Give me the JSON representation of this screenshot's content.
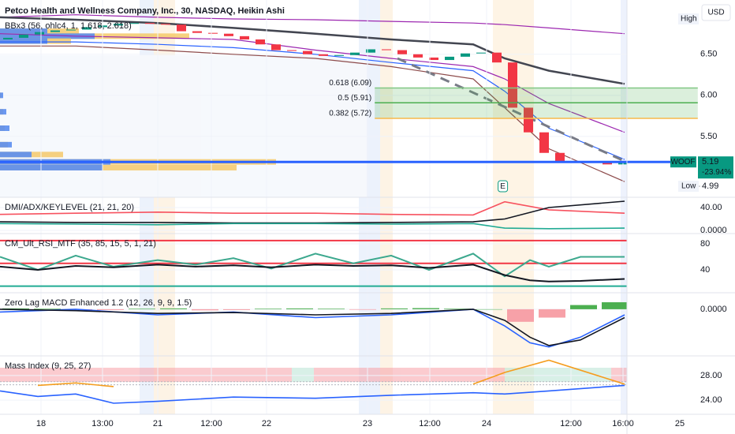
{
  "header": {
    "title": "Petco Health and Wellness Company, Inc., 30, NASDAQ, Heikin Ashi",
    "currency": "USD"
  },
  "chart_data": [
    {
      "type": "candlestick",
      "title": "BBx3 (56, ohlc4, 1, 1.618, 2.618)",
      "grid": true,
      "xlim": [
        0,
        116.5
      ],
      "xticks": [
        {
          "value": 6.5,
          "label": "18"
        },
        {
          "value": 16.25,
          "label": "13:00"
        },
        {
          "value": 25,
          "label": "21"
        },
        {
          "value": 33.5,
          "label": "12:00"
        },
        {
          "value": 42.25,
          "label": "22"
        },
        {
          "value": 58.25,
          "label": "23"
        },
        {
          "value": 68.125,
          "label": "12:00"
        },
        {
          "value": 77.125,
          "label": "24"
        },
        {
          "value": 90.5,
          "label": "12:00"
        },
        {
          "value": 98.75,
          "label": "16:00"
        },
        {
          "value": 107.75,
          "label": "25"
        }
      ],
      "ylim": [
        4.76,
        7.16
      ],
      "yticks": [
        {
          "value": 5.5,
          "label": "5.50"
        },
        {
          "value": 6,
          "label": "6.00"
        },
        {
          "value": 6.5,
          "label": "6.50"
        }
      ],
      "x": [
        1.25,
        3.75,
        6.25,
        8.75,
        11.25,
        13.75,
        16.25,
        18.75,
        21.25,
        23.75,
        26.25,
        28.75,
        31.25,
        33.75,
        36.25,
        38.75,
        41.25,
        43.75,
        46.25,
        48.75,
        51.25,
        53.75,
        56.25,
        58.75,
        61.25,
        63.75,
        66.25,
        68.75,
        71.25,
        73.75,
        76.25,
        78.75,
        81.25,
        83.75,
        86.25,
        88.75,
        91.25,
        93.75,
        96.25,
        98.75
      ],
      "open": [
        6.68,
        6.7,
        6.74,
        6.77,
        6.79,
        6.8,
        6.83,
        6.85,
        6.87,
        6.88,
        6.87,
        6.86,
        6.78,
        6.76,
        6.75,
        6.72,
        6.68,
        6.62,
        6.55,
        6.54,
        6.5,
        6.48,
        6.49,
        6.52,
        6.56,
        6.55,
        6.5,
        6.46,
        6.43,
        6.47,
        6.51,
        6.52,
        6.4,
        5.85,
        5.55,
        5.3,
        5.2,
        5.18,
        5.2,
        5.16
      ],
      "high": {
        "label": "High"
      },
      "low": {
        "label": "Low",
        "value": 4.99
      },
      "close": [
        6.7,
        6.74,
        6.77,
        6.79,
        6.8,
        6.83,
        6.85,
        6.87,
        6.88,
        6.87,
        6.86,
        6.78,
        6.76,
        6.75,
        6.72,
        6.68,
        6.62,
        6.55,
        6.54,
        6.5,
        6.48,
        6.49,
        6.52,
        6.56,
        6.55,
        6.5,
        6.46,
        6.43,
        6.47,
        6.51,
        6.52,
        6.4,
        5.85,
        5.55,
        5.3,
        5.2,
        5.18,
        5.2,
        5.16,
        5.19
      ],
      "up_color": "#089981",
      "down_color": "#f23645",
      "bands": {
        "x": [
          0,
          12,
          25,
          37,
          50,
          62,
          75,
          80,
          87,
          99
        ],
        "series": [
          {
            "color": "#9c27b0",
            "values": [
              6.95,
              6.98,
              6.95,
              6.93,
              6.92,
              6.9,
              6.88,
              6.86,
              6.82,
              6.75
            ]
          },
          {
            "color": "#434651",
            "values": [
              6.95,
              6.92,
              6.88,
              6.82,
              6.75,
              6.68,
              6.62,
              6.45,
              6.3,
              6.14
            ]
          },
          {
            "color": "#9c27b0",
            "values": [
              6.75,
              6.72,
              6.7,
              6.68,
              6.55,
              6.45,
              6.35,
              6.2,
              5.9,
              5.55
            ]
          },
          {
            "color": "#2962ff",
            "values": [
              6.65,
              6.65,
              6.62,
              6.58,
              6.5,
              6.4,
              6.3,
              6.05,
              5.6,
              5.22
            ]
          },
          {
            "color": "#8d4b4b",
            "values": [
              6.6,
              6.6,
              6.55,
              6.5,
              6.45,
              6.35,
              6.2,
              5.85,
              5.35,
              4.95
            ]
          }
        ]
      },
      "trendline": {
        "x": [
          63,
          99
        ],
        "values": [
          6.45,
          5.2
        ],
        "color": "#787b86"
      },
      "fib": {
        "x": [
          59.4,
          110.6
        ],
        "levels": [
          {
            "value": 6.09,
            "label": "0.618 (6.09)",
            "color": "#81c784"
          },
          {
            "value": 5.91,
            "label": "0.5 (5.91)",
            "color": "#4caf50"
          },
          {
            "value": 5.72,
            "label": "0.382 (5.72)",
            "color": "#f7b84b"
          }
        ]
      },
      "volume_profile": {
        "levels": [
          6.78,
          6.72,
          6.66,
          6.0,
          5.8,
          5.6,
          5.4,
          5.28,
          5.19,
          5.12
        ],
        "blue": [
          60,
          120,
          60,
          4,
          8,
          12,
          15,
          40,
          140,
          130
        ],
        "yellow": [
          100,
          240,
          90,
          2,
          4,
          6,
          10,
          80,
          350,
          300
        ],
        "blue_color": "#5b8def",
        "yellow_color": "#f5c96a"
      },
      "last": {
        "symbol": "WOOF",
        "value": 5.19,
        "change": "-23.94%",
        "color": "#2962ff",
        "tag_color": "#089981"
      },
      "earnings": {
        "label": "E",
        "x": 79.7
      }
    },
    {
      "type": "line",
      "title": "DMI/ADX/KEYLEVEL (21, 21, 20)",
      "grid": true,
      "ylim": [
        -5.5,
        57.9
      ],
      "yticks": [
        {
          "value": 0,
          "label": "0.0000"
        },
        {
          "value": 40,
          "label": "40.00"
        }
      ],
      "x": [
        0,
        12,
        25,
        37,
        50,
        62,
        75,
        80,
        87,
        99
      ],
      "series": [
        {
          "color": "#f7525f",
          "values": [
            28,
            30,
            32,
            30,
            30,
            28,
            27,
            50,
            36,
            30
          ]
        },
        {
          "color": "#131722",
          "values": [
            15,
            14,
            14,
            13,
            13,
            14,
            15,
            20,
            40,
            51
          ]
        },
        {
          "color": "#22ab94",
          "values": [
            12,
            11,
            10,
            12,
            12,
            11,
            12,
            4,
            3,
            4
          ]
        }
      ]
    },
    {
      "type": "line",
      "title": "CM_Ult_RSI_MTF (35, 85, 15, 5, 1, 21)",
      "grid": true,
      "ylim": [
        4.8,
        95.8
      ],
      "yticks": [
        40,
        80
      ],
      "x": [
        0,
        6,
        12,
        18,
        25,
        31,
        37,
        43,
        50,
        56,
        62,
        68,
        75,
        80,
        84,
        87,
        92,
        99
      ],
      "levels": [
        {
          "value": 85,
          "color": "#f23645"
        },
        {
          "value": 50,
          "color": "#f23645"
        },
        {
          "value": 15,
          "color": "#22ab94"
        }
      ],
      "series": [
        {
          "color": "#3ca88e",
          "values": [
            60,
            40,
            62,
            45,
            55,
            48,
            58,
            42,
            65,
            50,
            62,
            40,
            65,
            30,
            55,
            45,
            60,
            60
          ]
        },
        {
          "color": "#131722",
          "values": [
            45,
            40,
            46,
            44,
            48,
            45,
            47,
            44,
            48,
            46,
            47,
            43,
            48,
            32,
            24,
            22,
            23,
            26
          ]
        }
      ]
    },
    {
      "type": "line",
      "title": "Zero Lag MACD Enhanced 1.2 (12, 26, 9, 9, 1.5)",
      "grid": true,
      "ylim": [
        -0.167,
        0.059
      ],
      "yticks": [
        {
          "value": 0,
          "label": "0.0000"
        }
      ],
      "x": [
        0,
        12,
        25,
        37,
        50,
        62,
        75,
        80,
        84,
        87,
        92,
        99
      ],
      "series": [
        {
          "color": "#2962ff",
          "values": [
            -0.01,
            0.0,
            -0.02,
            -0.01,
            -0.03,
            -0.02,
            0.0,
            -0.06,
            -0.12,
            -0.135,
            -0.1,
            -0.02
          ]
        },
        {
          "color": "#131722",
          "values": [
            0.0,
            -0.005,
            -0.015,
            -0.012,
            -0.02,
            -0.015,
            0.0,
            -0.04,
            -0.1,
            -0.13,
            -0.11,
            -0.03
          ]
        }
      ],
      "histogram": {
        "x": [
          2.5,
          7.5,
          12.5,
          17.5,
          22.5,
          27.5,
          32.5,
          37.5,
          42.5,
          47.5,
          52.5,
          57.5,
          62.5,
          67.5,
          72.5,
          77.5,
          82.5,
          87.5,
          92.5,
          97.5
        ],
        "values": [
          0.003,
          0.002,
          -0.002,
          -0.003,
          0.002,
          0.003,
          -0.004,
          -0.003,
          0.002,
          0.003,
          0.002,
          -0.002,
          0.003,
          0.004,
          0.002,
          0,
          -0.045,
          -0.03,
          0.015,
          0.025
        ],
        "up_color": "#4caf50",
        "down_color": "#f7a1a8"
      }
    },
    {
      "type": "line",
      "title": "Mass Index (9, 25, 27)",
      "grid": true,
      "ylim": [
        21.7,
        31.2
      ],
      "yticks": [
        {
          "value": 24,
          "label": "24.00"
        },
        {
          "value": 28,
          "label": "28.00"
        }
      ],
      "x": [
        0,
        6,
        12,
        18,
        25,
        37,
        50,
        62,
        75,
        80,
        87,
        99
      ],
      "levels": [
        {
          "value": 27,
          "color": "#b2b5be"
        },
        {
          "value": 26.5,
          "color": "#b2b5be"
        }
      ],
      "series": [
        {
          "color": "#2962ff",
          "values": [
            25.5,
            24.6,
            25,
            23.5,
            23.8,
            24.5,
            24.3,
            24.8,
            25.2,
            25,
            25.5,
            26.4
          ]
        },
        {
          "color": "#f59d1e",
          "values": [
            null,
            26.4,
            26.8,
            26.2,
            null,
            null,
            null,
            null,
            26.6,
            28.5,
            30.5,
            26.6
          ]
        }
      ]
    }
  ]
}
